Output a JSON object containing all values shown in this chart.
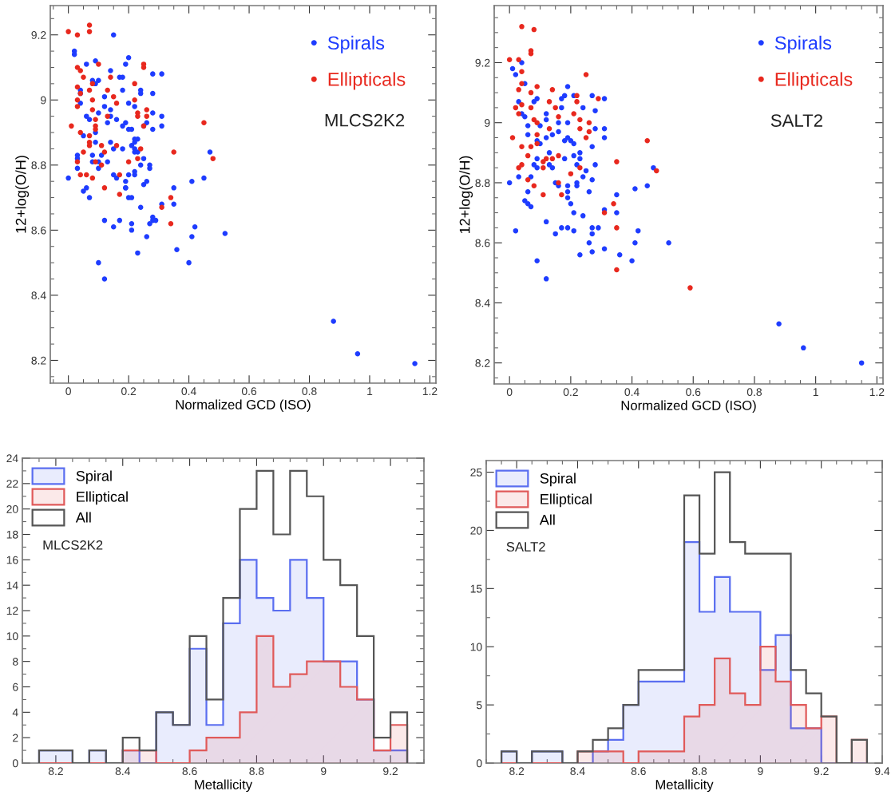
{
  "chart_data": [
    {
      "type": "scatter",
      "xlabel": "Normalized GCD (ISO)",
      "ylabel": "12+log(O/H)",
      "xlim": [
        -0.06,
        1.22
      ],
      "ylim": [
        8.13,
        9.29
      ],
      "xticks": [
        0,
        0.2,
        0.4,
        0.6,
        0.8,
        1,
        1.2
      ],
      "yticks": [
        8.2,
        8.4,
        8.6,
        8.8,
        9,
        9.2
      ],
      "marker": "circle",
      "grid": false,
      "legend": "top right",
      "annotations": [
        "MLCS2K2"
      ],
      "series": [
        {
          "name": "Spirals",
          "color": "#1e3cff",
          "x": [
            0.15,
            0.02,
            0.02,
            0.06,
            0.09,
            0.2,
            0.19,
            0.14,
            0.28,
            0.31,
            0.08,
            0.1,
            0.09,
            0.17,
            0.18,
            0.04,
            0.04,
            0.12,
            0.18,
            0.24,
            0.24,
            0.28,
            0.04,
            0.12,
            0.14,
            0.2,
            0.22,
            0.06,
            0.07,
            0.1,
            0.14,
            0.16,
            0.19,
            0.13,
            0.18,
            0.2,
            0.21,
            0.26,
            0.25,
            0.28,
            0.28,
            0.31,
            0.31,
            0.09,
            0.05,
            0.22,
            0.23,
            0.22,
            0.09,
            0.14,
            0.15,
            0.18,
            0.21,
            0.22,
            0.23,
            0.22,
            0.03,
            0.08,
            0.11,
            0.03,
            0.08,
            0.1,
            0.13,
            0.25,
            0.24,
            0.27,
            0.27,
            0.1,
            0.03,
            0.15,
            0.16,
            0.2,
            0.22,
            0.22,
            0.0,
            0.19,
            0.19,
            0.26,
            0.25,
            0.19,
            0.06,
            0.05,
            0.07,
            0.2,
            0.21,
            0.24,
            0.35,
            0.35,
            0.31,
            0.41,
            0.45,
            0.47,
            0.12,
            0.17,
            0.15,
            0.21,
            0.21,
            0.26,
            0.28,
            0.28,
            0.29,
            0.27,
            0.42,
            0.41,
            0.52,
            0.23,
            0.36,
            0.1,
            0.4,
            0.12,
            0.88,
            0.96,
            1.15
          ],
          "values": [
            9.2,
            9.15,
            9.14,
            9.11,
            9.12,
            9.13,
            9.11,
            9.09,
            9.08,
            9.08,
            9.06,
            9.06,
            9.05,
            9.07,
            9.07,
            9.03,
            9.02,
            9.01,
            9.03,
            9.03,
            9.02,
            9.02,
            8.99,
            8.98,
            8.97,
            8.99,
            8.98,
            8.95,
            8.94,
            8.96,
            8.95,
            8.94,
            8.93,
            8.93,
            8.92,
            8.91,
            8.91,
            8.93,
            8.92,
            8.91,
            8.96,
            8.95,
            8.92,
            8.9,
            8.89,
            8.88,
            8.88,
            8.87,
            8.87,
            8.87,
            8.85,
            8.85,
            8.86,
            8.85,
            8.84,
            8.84,
            8.83,
            8.83,
            8.83,
            8.82,
            8.81,
            8.81,
            8.81,
            8.82,
            8.8,
            8.8,
            8.79,
            8.79,
            8.79,
            8.77,
            8.76,
            8.77,
            8.77,
            8.78,
            8.76,
            8.75,
            8.73,
            8.75,
            8.74,
            8.73,
            8.73,
            8.72,
            8.7,
            8.7,
            8.7,
            8.67,
            8.73,
            8.68,
            8.68,
            8.75,
            8.76,
            8.84,
            8.63,
            8.63,
            8.61,
            8.62,
            8.6,
            8.58,
            8.64,
            8.63,
            8.63,
            8.62,
            8.61,
            8.58,
            8.59,
            8.53,
            8.54,
            8.5,
            8.5,
            8.45,
            8.32,
            8.22,
            8.19
          ]
        },
        {
          "name": "Ellipticals",
          "color": "#e8281e",
          "x": [
            0.0,
            0.03,
            0.07,
            0.07,
            0.03,
            0.04,
            0.05,
            0.1,
            0.03,
            0.04,
            0.08,
            0.07,
            0.03,
            0.03,
            0.08,
            0.08,
            0.25,
            0.25,
            0.14,
            0.13,
            0.15,
            0.16,
            0.22,
            0.22,
            0.23,
            0.23,
            0.26,
            0.26,
            0.25,
            0.13,
            0.09,
            0.09,
            0.09,
            0.01,
            0.04,
            0.07,
            0.07,
            0.07,
            0.11,
            0.16,
            0.05,
            0.12,
            0.03,
            0.09,
            0.11,
            0.2,
            0.24,
            0.23,
            0.04,
            0.06,
            0.08,
            0.17,
            0.12,
            0.17,
            0.34,
            0.31,
            0.34,
            0.35,
            0.45,
            0.48
          ],
          "values": [
            9.21,
            9.2,
            9.23,
            9.21,
            9.1,
            9.09,
            9.07,
            9.11,
            9.04,
            9.02,
            9.05,
            9.03,
            9.0,
            8.98,
            9.0,
            8.97,
            9.11,
            9.1,
            9.07,
            9.03,
            9.01,
            8.99,
            9.05,
            9.0,
            8.96,
            8.95,
            8.97,
            8.95,
            8.92,
            8.95,
            8.94,
            8.92,
            8.91,
            8.92,
            8.9,
            8.89,
            8.87,
            8.86,
            8.86,
            8.86,
            8.84,
            8.84,
            8.81,
            8.81,
            8.8,
            8.81,
            8.85,
            8.82,
            8.77,
            8.77,
            8.76,
            8.77,
            8.73,
            8.71,
            8.7,
            8.67,
            8.62,
            8.84,
            8.93,
            8.82
          ]
        }
      ]
    },
    {
      "type": "scatter",
      "xlabel": "Normalized GCD (ISO)",
      "ylabel": "12+log(O/H)",
      "xlim": [
        -0.05,
        1.22
      ],
      "ylim": [
        8.13,
        9.39
      ],
      "xticks": [
        0,
        0.2,
        0.4,
        0.6,
        0.8,
        1,
        1.2
      ],
      "yticks": [
        8.2,
        8.4,
        8.6,
        8.8,
        9,
        9.2
      ],
      "marker": "circle",
      "grid": false,
      "legend": "top right",
      "annotations": [
        "SALT2"
      ],
      "series": [
        {
          "name": "Spirals",
          "color": "#1e3cff",
          "x": [
            0.04,
            0.01,
            0.02,
            0.05,
            0.19,
            0.03,
            0.04,
            0.05,
            0.08,
            0.09,
            0.17,
            0.18,
            0.21,
            0.27,
            0.31,
            0.17,
            0.24,
            0.28,
            0.12,
            0.12,
            0.16,
            0.19,
            0.06,
            0.1,
            0.06,
            0.12,
            0.14,
            0.16,
            0.19,
            0.18,
            0.2,
            0.21,
            0.09,
            0.1,
            0.28,
            0.31,
            0.31,
            0.27,
            0.13,
            0.18,
            0.21,
            0.23,
            0.23,
            0.22,
            0.09,
            0.08,
            0.09,
            0.13,
            0.14,
            0.25,
            0.24,
            0.27,
            0.28,
            0.07,
            0.03,
            0.0,
            0.15,
            0.16,
            0.19,
            0.22,
            0.22,
            0.26,
            0.06,
            0.05,
            0.06,
            0.07,
            0.19,
            0.19,
            0.2,
            0.21,
            0.24,
            0.35,
            0.41,
            0.45,
            0.47,
            0.35,
            0.31,
            0.12,
            0.02,
            0.17,
            0.19,
            0.21,
            0.15,
            0.27,
            0.29,
            0.27,
            0.42,
            0.41,
            0.26,
            0.52,
            0.31,
            0.27,
            0.23,
            0.36,
            0.09,
            0.4,
            0.12,
            0.88,
            0.96,
            1.15
          ],
          "values": [
            9.2,
            9.18,
            9.16,
            9.13,
            9.12,
            9.07,
            9.03,
            9.02,
            9.07,
            9.08,
            9.08,
            9.09,
            9.09,
            9.09,
            9.08,
            9.05,
            9.05,
            9.04,
            9.03,
            9.01,
            9.0,
            9.0,
            8.99,
            8.99,
            8.96,
            8.95,
            8.96,
            8.97,
            8.95,
            8.94,
            8.94,
            8.93,
            8.94,
            8.93,
            8.98,
            8.98,
            8.95,
            8.92,
            8.9,
            8.88,
            8.89,
            8.9,
            8.88,
            8.86,
            8.88,
            8.86,
            8.85,
            8.86,
            8.85,
            8.84,
            8.82,
            8.81,
            8.86,
            8.82,
            8.82,
            8.8,
            8.8,
            8.79,
            8.79,
            8.8,
            8.79,
            8.77,
            8.77,
            8.74,
            8.73,
            8.72,
            8.77,
            8.75,
            8.73,
            8.7,
            8.69,
            8.76,
            8.78,
            8.79,
            8.85,
            8.7,
            8.71,
            8.67,
            8.64,
            8.65,
            8.65,
            8.64,
            8.63,
            8.65,
            8.65,
            8.63,
            8.64,
            8.6,
            8.6,
            8.6,
            8.58,
            8.57,
            8.56,
            8.56,
            8.54,
            8.54,
            8.48,
            8.33,
            8.25,
            8.2
          ]
        },
        {
          "name": "Ellipticals",
          "color": "#e8281e",
          "x": [
            0.04,
            0.08,
            0.07,
            0.07,
            0.0,
            0.03,
            0.04,
            0.25,
            0.04,
            0.09,
            0.03,
            0.14,
            0.07,
            0.22,
            0.22,
            0.29,
            0.04,
            0.02,
            0.07,
            0.13,
            0.15,
            0.16,
            0.03,
            0.21,
            0.08,
            0.09,
            0.23,
            0.26,
            0.13,
            0.23,
            0.26,
            0.25,
            0.09,
            0.01,
            0.04,
            0.07,
            0.09,
            0.06,
            0.11,
            0.12,
            0.14,
            0.16,
            0.03,
            0.04,
            0.11,
            0.23,
            0.35,
            0.45,
            0.48,
            0.2,
            0.06,
            0.08,
            0.11,
            0.16,
            0.17,
            0.34,
            0.31,
            0.35,
            0.35,
            0.59
          ],
          "values": [
            9.32,
            9.31,
            9.24,
            9.23,
            9.21,
            9.21,
            9.17,
            9.16,
            9.13,
            9.12,
            9.11,
            9.11,
            9.1,
            9.09,
            9.07,
            9.08,
            9.06,
            9.05,
            9.05,
            9.07,
            9.05,
            9.02,
            9.03,
            9.03,
            9.01,
            9.0,
            9.01,
            9.0,
            8.98,
            8.98,
            8.97,
            8.95,
            8.96,
            8.95,
            8.92,
            8.92,
            8.93,
            8.89,
            8.87,
            8.88,
            8.88,
            8.89,
            8.85,
            8.86,
            8.85,
            8.85,
            8.87,
            8.94,
            8.84,
            8.83,
            8.81,
            8.79,
            8.76,
            8.8,
            8.76,
            8.73,
            8.7,
            8.65,
            8.51,
            8.45
          ]
        }
      ]
    },
    {
      "type": "histogram",
      "xlabel": "Metallicity",
      "xlim": [
        8.1,
        9.3
      ],
      "ylim": [
        0,
        24
      ],
      "xticks": [
        8.2,
        8.4,
        8.6,
        8.8,
        9,
        9.2
      ],
      "yticks": [
        0,
        2,
        4,
        6,
        8,
        10,
        12,
        14,
        16,
        18,
        20,
        22,
        24
      ],
      "grid": false,
      "legend": "top left",
      "annotations": [
        "MLCS2K2"
      ],
      "bins": [
        8.15,
        8.2,
        8.25,
        8.3,
        8.35,
        8.4,
        8.45,
        8.5,
        8.55,
        8.6,
        8.65,
        8.7,
        8.75,
        8.8,
        8.85,
        8.9,
        8.95,
        9.0,
        9.05,
        9.1,
        9.15,
        9.2,
        9.25
      ],
      "series": [
        {
          "name": "Spiral",
          "color": "#5a6ef0",
          "values": [
            1,
            1,
            0,
            1,
            0,
            1,
            0,
            4,
            3,
            9,
            3,
            11,
            16,
            13,
            12,
            16,
            13,
            8,
            8,
            5,
            1,
            1
          ]
        },
        {
          "name": "Elliptical",
          "color": "#e05a5a",
          "values": [
            0,
            0,
            0,
            0,
            0,
            1,
            1,
            0,
            0,
            1,
            2,
            2,
            4,
            10,
            6,
            7,
            8,
            8,
            6,
            5,
            1,
            3
          ]
        },
        {
          "name": "All",
          "color": "#555555",
          "values": [
            1,
            1,
            0,
            1,
            0,
            2,
            1,
            4,
            3,
            10,
            5,
            13,
            20,
            23,
            18,
            23,
            21,
            16,
            14,
            10,
            2,
            4
          ]
        }
      ]
    },
    {
      "type": "histogram",
      "xlabel": "Metallicity",
      "xlim": [
        8.1,
        9.4
      ],
      "ylim": [
        0,
        26
      ],
      "xticks": [
        8.2,
        8.4,
        8.6,
        8.8,
        9,
        9.2,
        9.4
      ],
      "yticks": [
        0,
        5,
        10,
        15,
        20,
        25
      ],
      "grid": false,
      "legend": "top left",
      "annotations": [
        "SALT2"
      ],
      "bins": [
        8.15,
        8.2,
        8.25,
        8.3,
        8.35,
        8.4,
        8.45,
        8.5,
        8.55,
        8.6,
        8.65,
        8.7,
        8.75,
        8.8,
        8.85,
        8.9,
        8.95,
        9.0,
        9.05,
        9.1,
        9.15,
        9.2,
        9.25,
        9.3,
        9.35
      ],
      "series": [
        {
          "name": "Spiral",
          "color": "#5a6ef0",
          "values": [
            1,
            0,
            1,
            1,
            0,
            0,
            1,
            2,
            5,
            7,
            7,
            7,
            19,
            13,
            16,
            13,
            13,
            8,
            11,
            3,
            3,
            0,
            0,
            0
          ]
        },
        {
          "name": "Elliptical",
          "color": "#e05a5a",
          "values": [
            0,
            0,
            0,
            0,
            0,
            1,
            1,
            1,
            0,
            1,
            1,
            1,
            4,
            5,
            9,
            6,
            5,
            10,
            7,
            5,
            3,
            4,
            0,
            2
          ]
        },
        {
          "name": "All",
          "color": "#555555",
          "values": [
            1,
            0,
            1,
            1,
            0,
            1,
            2,
            3,
            5,
            8,
            8,
            8,
            23,
            18,
            25,
            19,
            18,
            18,
            18,
            8,
            6,
            4,
            0,
            2
          ]
        }
      ]
    }
  ]
}
